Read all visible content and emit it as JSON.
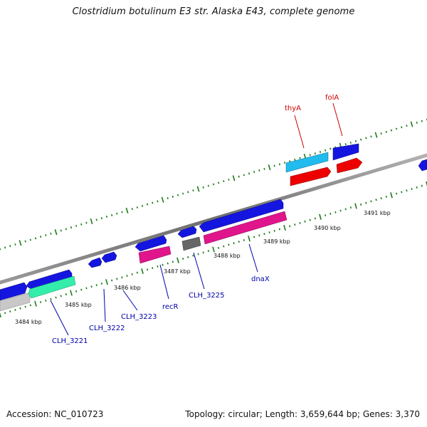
{
  "title": "Clostridium botulinum E3 str. Alaska E43, complete genome",
  "footer": {
    "accession": "Accession: NC_010723",
    "stats": "Topology: circular; Length: 3,659,644 bp; Genes: 3,370"
  },
  "colors": {
    "backbone": "#808080",
    "ticks": "#1a7a1a",
    "blue_gene": "#1515e0",
    "magenta_gene": "#e0158c",
    "cyan_gene": "#22bbee",
    "red_gene": "#ee0000",
    "green_gene": "#33eeaa",
    "gray_gene": "#666666",
    "lightgray_gene": "#c8c8c8",
    "label_blue": "#0000aa",
    "label_red": "#cc0000"
  },
  "ruler": {
    "tick_labels": [
      "3484 kbp",
      "3485 kbp",
      "3486 kbp",
      "3487 kbp",
      "3488 kbp",
      "3489 kbp",
      "3490 kbp",
      "3491 kbp"
    ]
  },
  "gene_labels": [
    "CLH_3221",
    "CLH_3222",
    "CLH_3223",
    "recR",
    "CLH_3225",
    "dnaX",
    "thyA",
    "folA"
  ]
}
